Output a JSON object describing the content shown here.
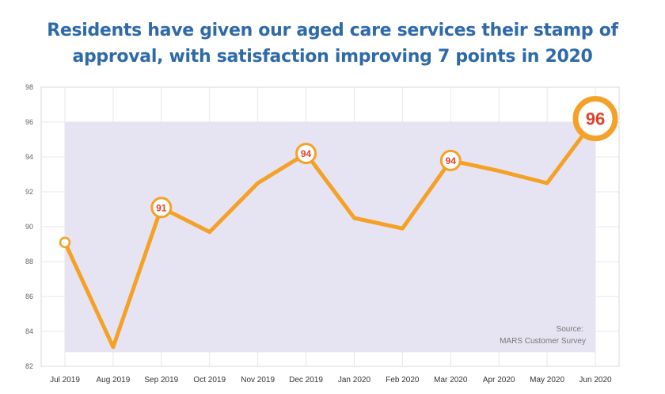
{
  "chart_data": {
    "type": "line",
    "title_lines": [
      "Residents have given our aged care services their stamp of",
      "approval, with satisfaction improving 7 points in 2020"
    ],
    "categories": [
      "Jul 2019",
      "Aug 2019",
      "Sep 2019",
      "Oct 2019",
      "Nov 2019",
      "Dec 2019",
      "Jan 2020",
      "Feb 2020",
      "Mar 2020",
      "Apr 2020",
      "May 2020",
      "Jun 2020"
    ],
    "values": [
      89.1,
      83.1,
      91.1,
      89.7,
      92.5,
      94.2,
      90.5,
      89.9,
      93.8,
      93.2,
      92.5,
      96.2
    ],
    "ylim": [
      82,
      98
    ],
    "yticks": [
      82,
      84,
      86,
      88,
      90,
      92,
      94,
      96,
      98
    ],
    "data_labels": [
      {
        "index": 2,
        "text": "91",
        "size": "small"
      },
      {
        "index": 5,
        "text": "94",
        "size": "small"
      },
      {
        "index": 8,
        "text": "94",
        "size": "small"
      },
      {
        "index": 11,
        "text": "96",
        "size": "large"
      }
    ],
    "band_range": [
      82.8,
      96
    ],
    "source_lines": [
      "Source:",
      "MARS Customer Survey"
    ],
    "colors": {
      "line": "#f4a127",
      "label_text": "#e0412b",
      "band": "#e6e4f3",
      "grid": "#e7e7e7",
      "title": "#2f6aa8"
    }
  }
}
